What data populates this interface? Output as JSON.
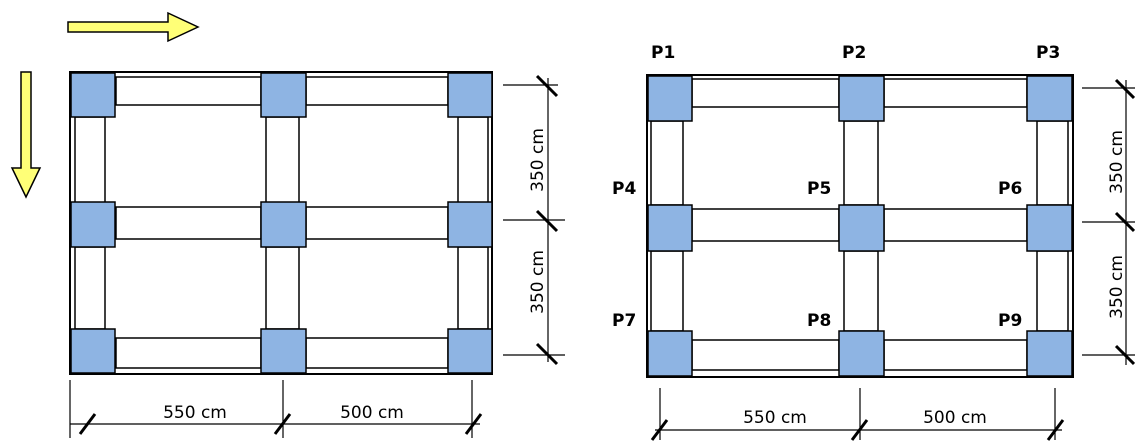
{
  "colors": {
    "column_fill": "#8EB4E3",
    "arrow_fill": "#FFFF77",
    "line": "#000000",
    "background": "#FFFFFF"
  },
  "left_plan": {
    "dimensions": {
      "span_x1": "550 cm",
      "span_x2": "500 cm",
      "span_y1": "350 cm",
      "span_y2": "350 cm"
    },
    "arrows": [
      "horizontal-arrow",
      "vertical-arrow"
    ]
  },
  "right_plan": {
    "dimensions": {
      "span_x1": "550 cm",
      "span_x2": "500 cm",
      "span_y1": "350 cm",
      "span_y2": "350 cm"
    },
    "pillars": [
      "P1",
      "P2",
      "P3",
      "P4",
      "P5",
      "P6",
      "P7",
      "P8",
      "P9"
    ]
  }
}
